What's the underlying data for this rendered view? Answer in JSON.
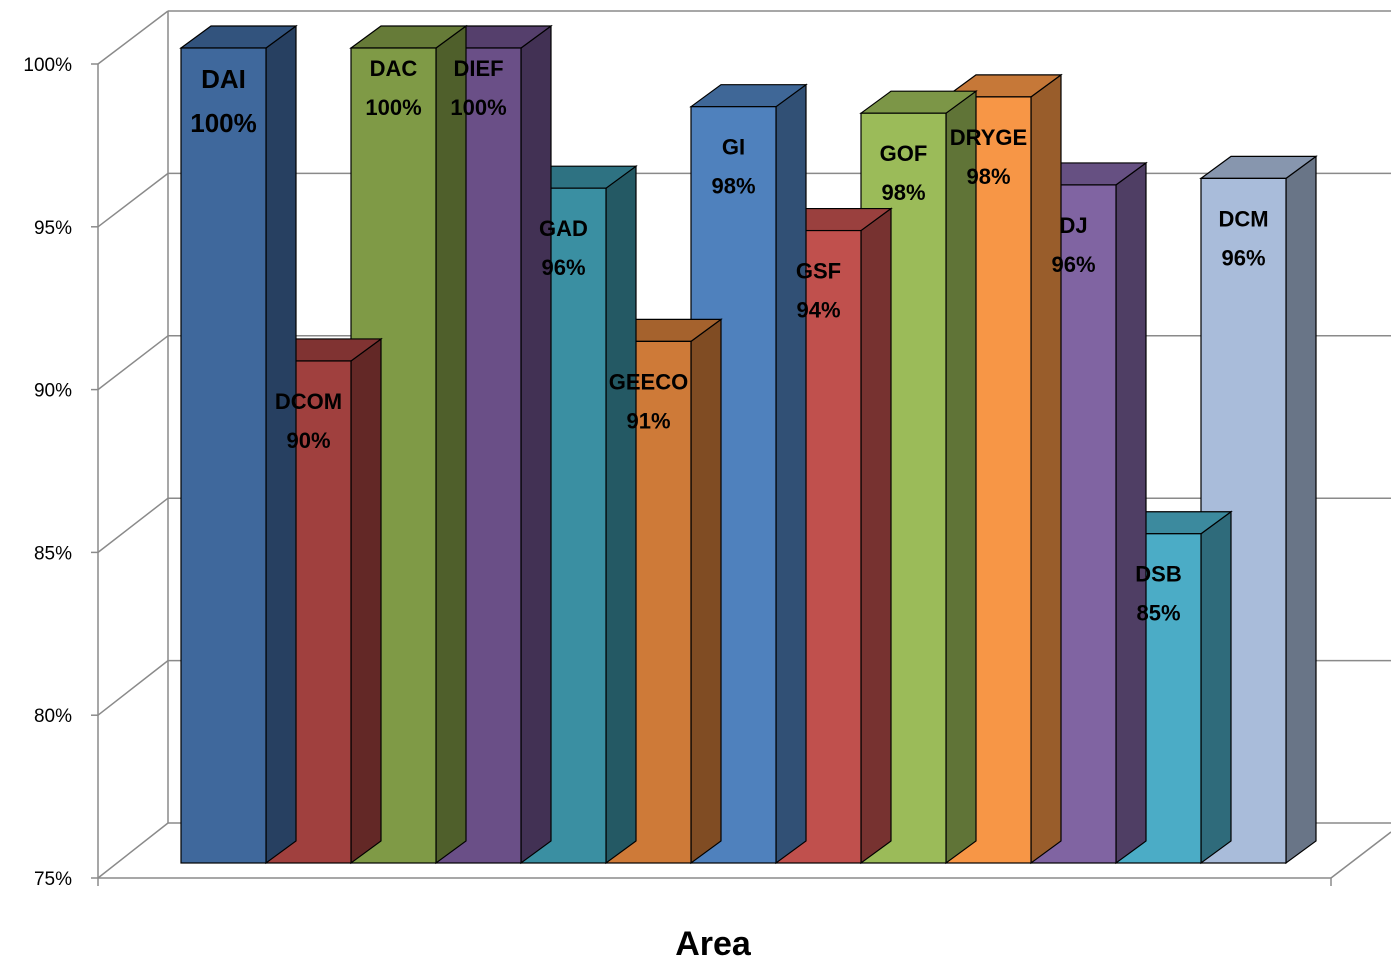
{
  "chart_data": {
    "type": "bar",
    "title": "",
    "xlabel": "Area",
    "ylabel": "",
    "ylim": [
      0.75,
      1.0
    ],
    "yticks": [
      "75%",
      "80%",
      "85%",
      "90%",
      "95%",
      "100%"
    ],
    "grid": true,
    "legend": "none",
    "style": "3d-clustered",
    "categories": [
      "DAI",
      "DCOM",
      "DAC",
      "DIEF",
      "GAD",
      "GEECO",
      "GI",
      "GSF",
      "GOF",
      "DRYGE",
      "DJ",
      "DSB",
      "DCM"
    ],
    "values": [
      1.0,
      0.904,
      1.0,
      1.0,
      0.957,
      0.91,
      0.982,
      0.944,
      0.98,
      0.985,
      0.958,
      0.851,
      0.96
    ],
    "data_labels": [
      "100%",
      "90%",
      "100%",
      "100%",
      "96%",
      "91%",
      "98%",
      "94%",
      "98%",
      "98%",
      "96%",
      "85%",
      "96%"
    ],
    "colors": [
      "#3F689C",
      "#A0403E",
      "#7F9A46",
      "#6A4F87",
      "#3A8FA2",
      "#CE7A38",
      "#4F81BD",
      "#C0504D",
      "#9BBB59",
      "#F79646",
      "#8064A2",
      "#4BACC6",
      "#A9BCDA"
    ]
  }
}
